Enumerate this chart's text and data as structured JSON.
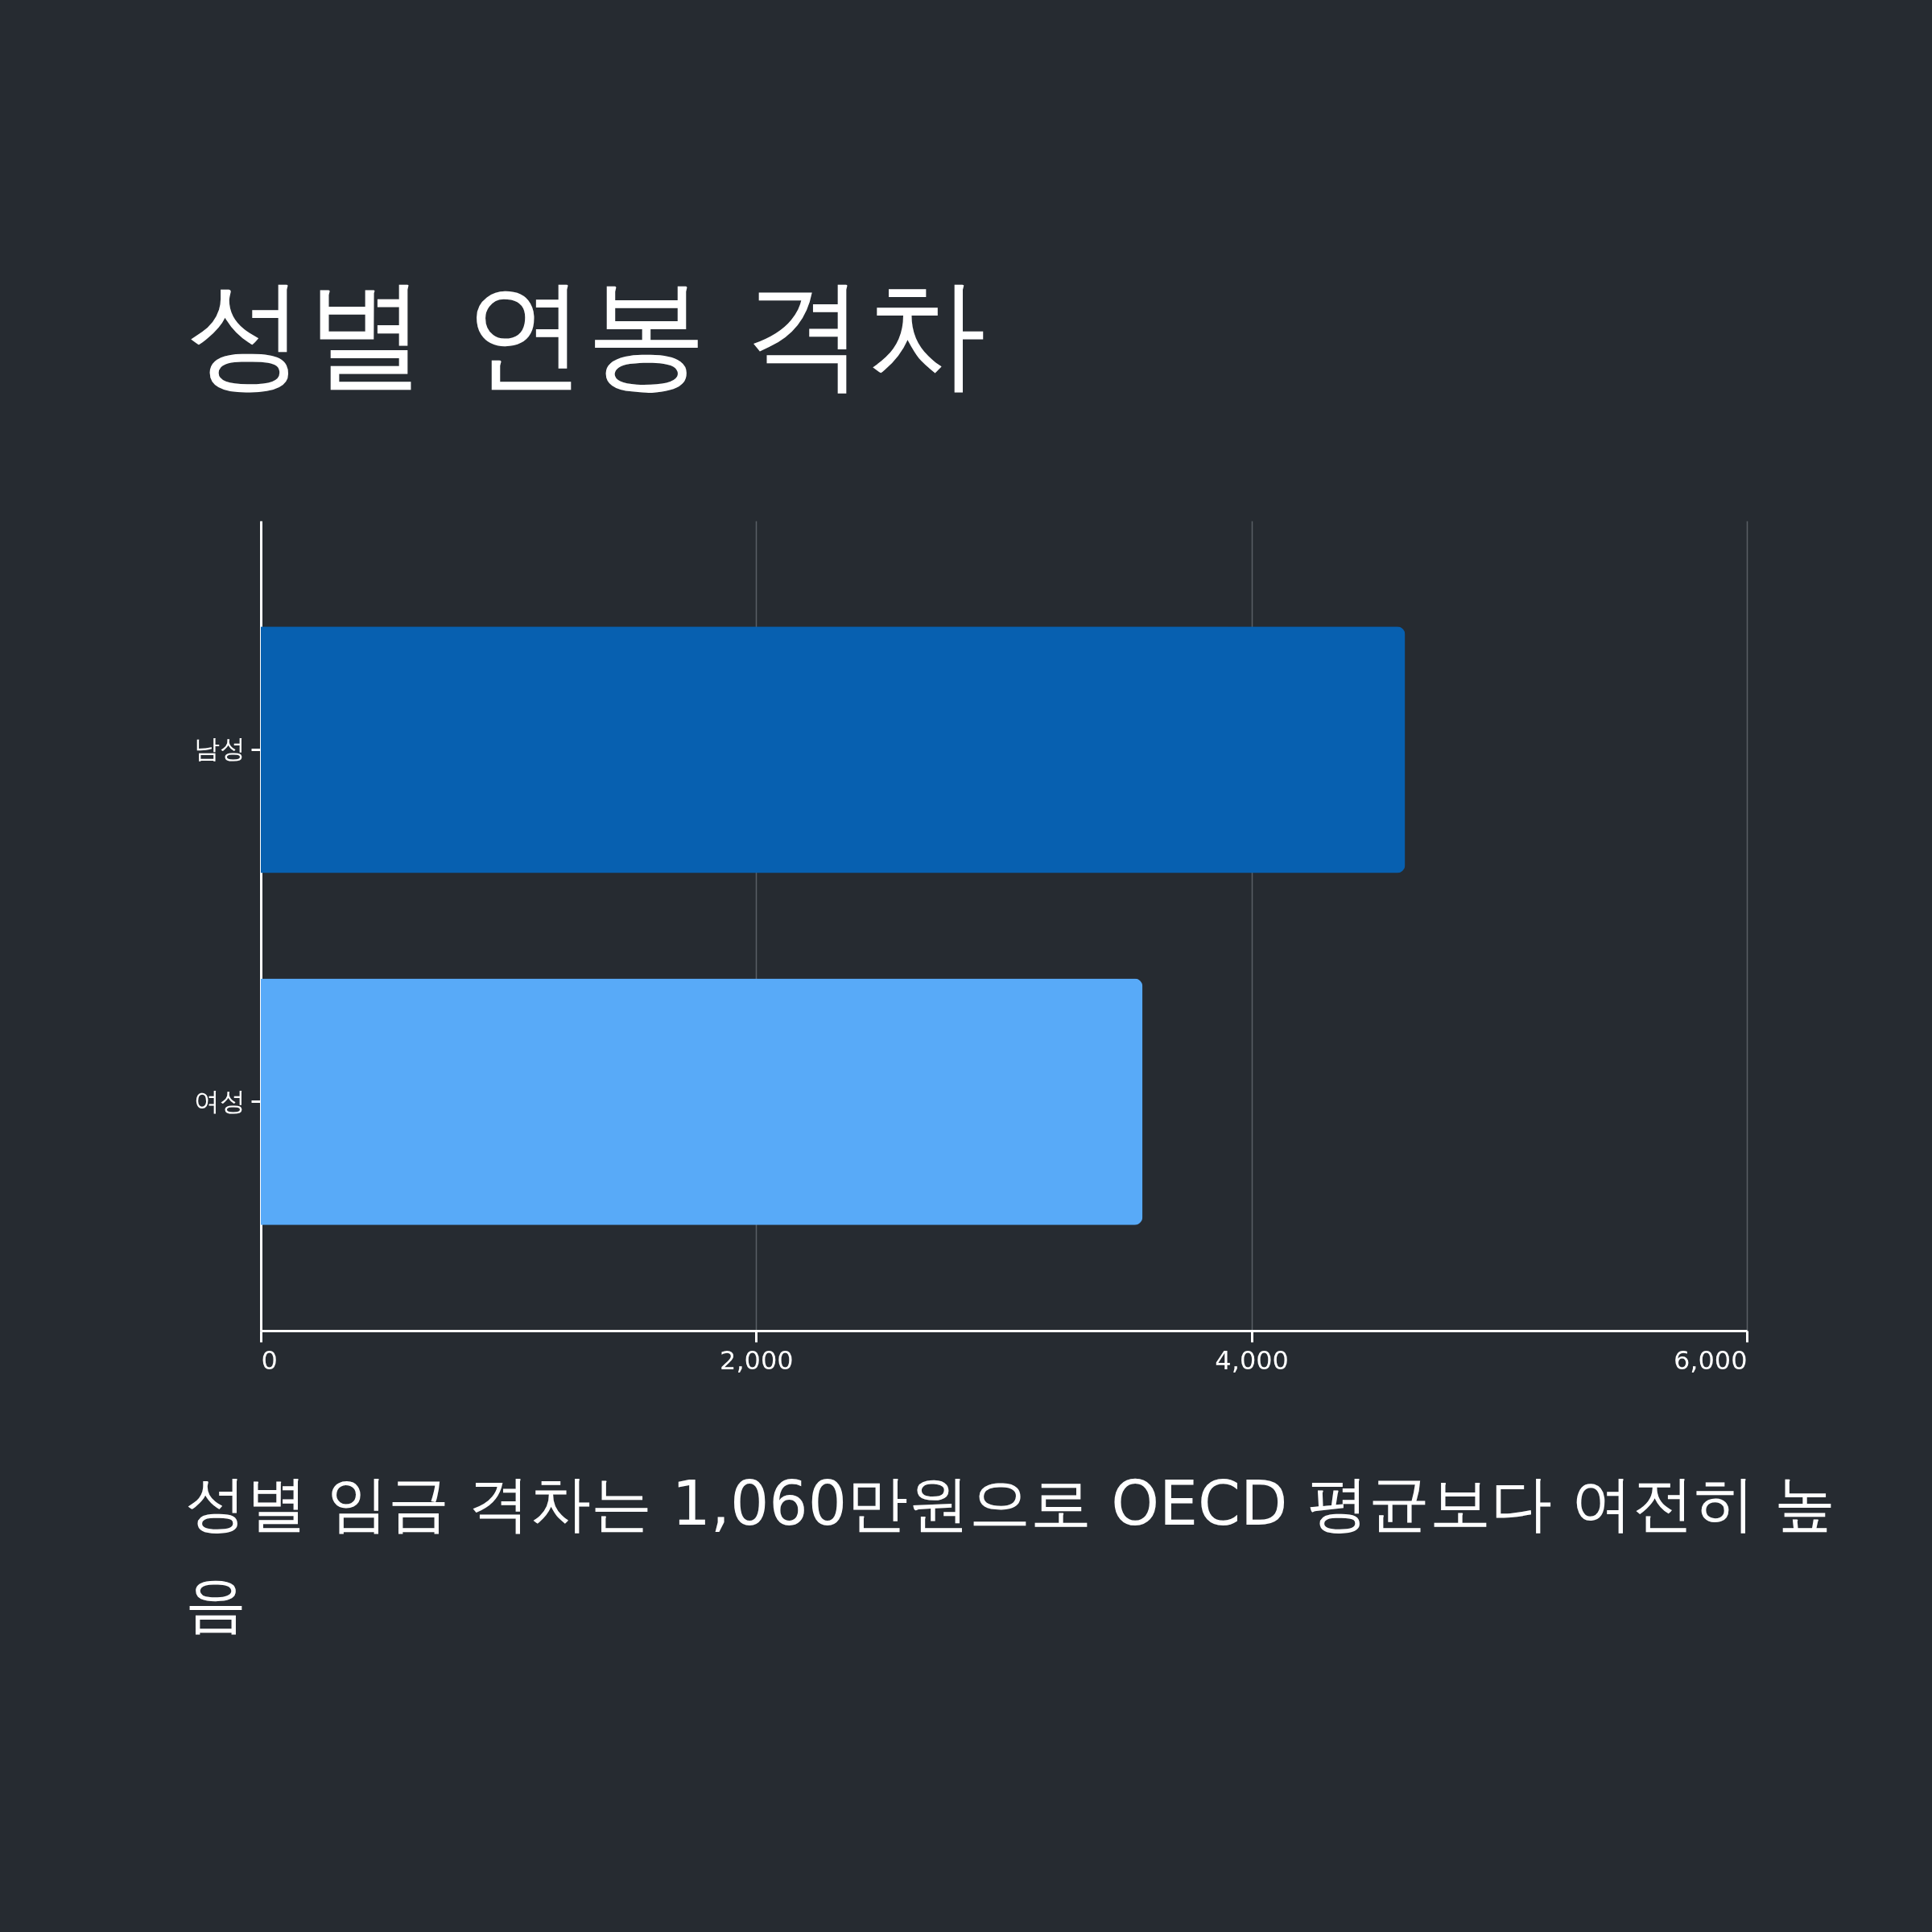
{
  "chart_data": {
    "type": "bar",
    "orientation": "horizontal",
    "title": "성별 연봉 격차",
    "categories": [
      "남성",
      "여성"
    ],
    "values": [
      4620,
      3560
    ],
    "colors": [
      "#0760b0",
      "#58aaf8"
    ],
    "xlim": [
      0,
      6000
    ],
    "xticks": [
      0,
      {
        "value": 2000,
        "label": "2,000"
      },
      {
        "value": 4000,
        "label": "4,000"
      },
      {
        "value": 6000,
        "label": "6,000"
      }
    ],
    "grid": "x",
    "annotations": [
      "성별 임금 격차는 1,060만원으로 OECD 평균보다 여전히 높음"
    ]
  }
}
